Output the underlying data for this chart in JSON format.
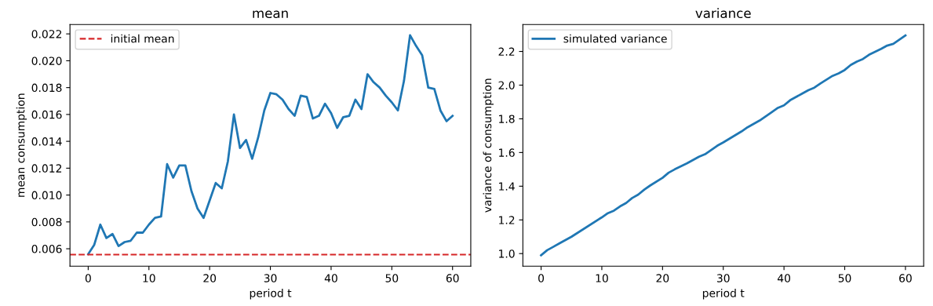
{
  "chart_data": [
    {
      "type": "line",
      "title": "mean",
      "xlabel": "period t",
      "ylabel": "mean consumption",
      "xlim": [
        -3,
        63
      ],
      "xticks": [
        0,
        10,
        20,
        30,
        40,
        50,
        60
      ],
      "ylim": [
        0.0047,
        0.0227
      ],
      "yticks": [
        {
          "value": 0.006,
          "label": "0.006"
        },
        {
          "value": 0.008,
          "label": "0.008"
        },
        {
          "value": 0.01,
          "label": "0.010"
        },
        {
          "value": 0.012,
          "label": "0.012"
        },
        {
          "value": 0.014,
          "label": "0.014"
        },
        {
          "value": 0.016,
          "label": "0.016"
        },
        {
          "value": 0.018,
          "label": "0.018"
        },
        {
          "value": 0.02,
          "label": "0.020"
        },
        {
          "value": 0.022,
          "label": "0.022"
        }
      ],
      "grid": false,
      "legend": "top left",
      "marker": "none",
      "line_style": "solid",
      "x": [
        0,
        1,
        2,
        3,
        4,
        5,
        6,
        7,
        8,
        9,
        10,
        11,
        12,
        13,
        14,
        15,
        16,
        17,
        18,
        19,
        20,
        21,
        22,
        23,
        24,
        25,
        26,
        27,
        28,
        29,
        30,
        31,
        32,
        33,
        34,
        35,
        36,
        37,
        38,
        39,
        40,
        41,
        42,
        43,
        44,
        45,
        46,
        47,
        48,
        49,
        50,
        51,
        52,
        53,
        54,
        55,
        56,
        57,
        58,
        59,
        60
      ],
      "series": [
        {
          "color": "#1f77b4",
          "values": [
            0.0056,
            0.0063,
            0.0078,
            0.0068,
            0.0071,
            0.0062,
            0.0065,
            0.0066,
            0.0072,
            0.0072,
            0.0078,
            0.0083,
            0.0084,
            0.0123,
            0.0113,
            0.0122,
            0.0122,
            0.0103,
            0.009,
            0.0083,
            0.0096,
            0.0109,
            0.0105,
            0.0125,
            0.016,
            0.0135,
            0.0141,
            0.0127,
            0.0143,
            0.0163,
            0.0176,
            0.0175,
            0.0171,
            0.0164,
            0.0159,
            0.0174,
            0.0173,
            0.0157,
            0.0159,
            0.0168,
            0.0161,
            0.015,
            0.0158,
            0.0159,
            0.0171,
            0.0164,
            0.019,
            0.0184,
            0.018,
            0.0174,
            0.0169,
            0.0163,
            0.0185,
            0.0219,
            0.0211,
            0.0204,
            0.018,
            0.0179,
            0.0163,
            0.0155,
            0.0159
          ]
        }
      ],
      "ref_lines": [
        {
          "axis": "y",
          "value": 0.00556,
          "label": "initial mean",
          "color": "#d62728",
          "line_style": "dashed"
        }
      ]
    },
    {
      "type": "line",
      "title": "variance",
      "xlabel": "period t",
      "ylabel": "variance of consumption",
      "xlim": [
        -3,
        63
      ],
      "xticks": [
        0,
        10,
        20,
        30,
        40,
        50,
        60
      ],
      "ylim": [
        0.925,
        2.36
      ],
      "yticks": [
        {
          "value": 1.0,
          "label": "1.0"
        },
        {
          "value": 1.2,
          "label": "1.2"
        },
        {
          "value": 1.4,
          "label": "1.4"
        },
        {
          "value": 1.6,
          "label": "1.6"
        },
        {
          "value": 1.8,
          "label": "1.8"
        },
        {
          "value": 2.0,
          "label": "2.0"
        },
        {
          "value": 2.2,
          "label": "2.2"
        }
      ],
      "grid": false,
      "legend": "top left",
      "marker": "none",
      "line_style": "solid",
      "x": [
        0,
        1,
        2,
        3,
        5,
        10,
        11,
        12,
        13,
        14,
        15,
        16,
        17,
        18,
        20,
        21,
        22,
        24,
        26,
        27,
        29,
        30,
        33,
        34,
        36,
        38,
        39,
        40,
        41,
        43,
        44,
        45,
        46,
        48,
        49,
        50,
        51,
        52,
        53,
        54,
        56,
        57,
        58,
        60
      ],
      "series": [
        {
          "name": "simulated variance",
          "color": "#1f77b4",
          "values": [
            0.99,
            1.02,
            1.04,
            1.06,
            1.1,
            1.215,
            1.24,
            1.255,
            1.28,
            1.3,
            1.33,
            1.35,
            1.38,
            1.405,
            1.45,
            1.48,
            1.5,
            1.535,
            1.575,
            1.59,
            1.64,
            1.66,
            1.725,
            1.75,
            1.79,
            1.84,
            1.865,
            1.88,
            1.91,
            1.95,
            1.97,
            1.985,
            2.01,
            2.055,
            2.07,
            2.09,
            2.12,
            2.14,
            2.155,
            2.18,
            2.215,
            2.235,
            2.245,
            2.295
          ]
        }
      ]
    }
  ]
}
